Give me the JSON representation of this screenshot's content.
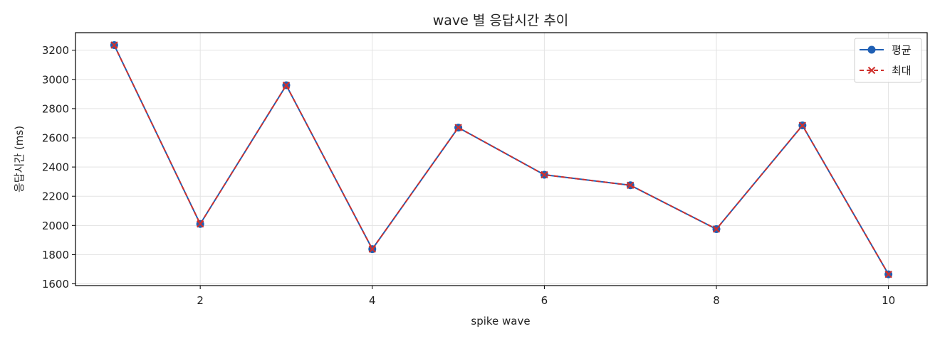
{
  "chart_data": {
    "type": "line",
    "title": "wave 별 응답시간 추이",
    "xlabel": "spike wave",
    "ylabel": "응답시간 (ms)",
    "x": [
      1,
      2,
      3,
      4,
      5,
      6,
      7,
      8,
      9,
      10
    ],
    "xlim": [
      0.55,
      10.45
    ],
    "ylim": [
      1588,
      3320
    ],
    "xticks": [
      2,
      4,
      6,
      8,
      10
    ],
    "yticks": [
      1600,
      1800,
      2000,
      2200,
      2400,
      2600,
      2800,
      3000,
      3200
    ],
    "grid": true,
    "legend_position": "top-right",
    "series": [
      {
        "name": "평균",
        "color": "#1f5fb4",
        "marker": "circle",
        "line_style": "solid",
        "values": [
          3235,
          2010,
          2960,
          1838,
          2670,
          2347,
          2275,
          1975,
          2685,
          1665
        ]
      },
      {
        "name": "최대",
        "color": "#d0312d",
        "marker": "x",
        "line_style": "dashed",
        "values": [
          3235,
          2010,
          2960,
          1838,
          2670,
          2347,
          2275,
          1975,
          2685,
          1665
        ]
      }
    ]
  }
}
